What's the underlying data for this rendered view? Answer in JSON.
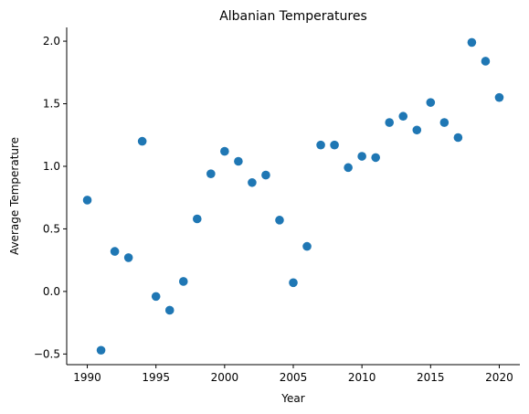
{
  "chart_data": {
    "type": "scatter",
    "title": "Albanian Temperatures",
    "xlabel": "Year",
    "ylabel": "Average Temperature",
    "xlim": [
      1988.5,
      2021.5
    ],
    "ylim": [
      -0.585,
      2.11
    ],
    "xticks": [
      1990,
      1995,
      2000,
      2005,
      2010,
      2015,
      2020
    ],
    "xtick_labels": [
      "1990",
      "1995",
      "2000",
      "2005",
      "2010",
      "2015",
      "2020"
    ],
    "yticks": [
      -0.5,
      0.0,
      0.5,
      1.0,
      1.5,
      2.0
    ],
    "ytick_labels": [
      "−0.5",
      "0.0",
      "0.5",
      "1.0",
      "1.5",
      "2.0"
    ],
    "grid": false,
    "marker_color": "#1f77b4",
    "series": [
      {
        "name": "Average Temperature",
        "x": [
          1990,
          1991,
          1992,
          1993,
          1994,
          1995,
          1996,
          1997,
          1998,
          1999,
          2000,
          2001,
          2002,
          2003,
          2004,
          2005,
          2006,
          2007,
          2008,
          2009,
          2010,
          2011,
          2012,
          2013,
          2014,
          2015,
          2016,
          2017,
          2018,
          2019,
          2020
        ],
        "y": [
          0.73,
          -0.47,
          0.32,
          0.27,
          1.2,
          -0.04,
          -0.15,
          0.08,
          0.58,
          0.94,
          1.12,
          1.04,
          0.87,
          0.93,
          0.57,
          0.07,
          0.36,
          1.17,
          1.17,
          0.99,
          1.08,
          1.07,
          1.35,
          1.4,
          1.29,
          1.51,
          1.35,
          1.23,
          1.99,
          1.84,
          1.55
        ]
      }
    ]
  }
}
